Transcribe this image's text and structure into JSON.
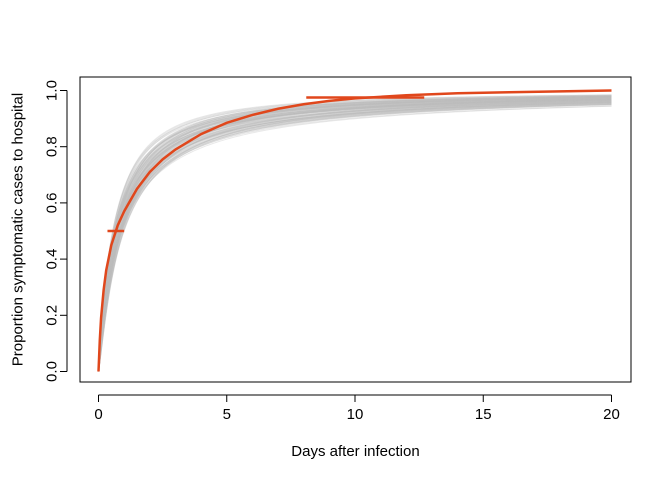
{
  "chart_data": {
    "type": "line",
    "title": "",
    "xlabel": "Days after infection",
    "ylabel": "Proportion symptomatic cases to hospital",
    "xlim": [
      0,
      20
    ],
    "ylim": [
      0,
      1
    ],
    "x_ticks": [
      0,
      5,
      10,
      15,
      20
    ],
    "y_ticks": [
      0.0,
      0.2,
      0.4,
      0.6,
      0.8,
      1.0
    ],
    "x_tick_labels": [
      "0",
      "5",
      "10",
      "15",
      "20"
    ],
    "y_tick_labels": [
      "0.0",
      "0.2",
      "0.4",
      "0.6",
      "0.8",
      "1.0"
    ],
    "grid": false,
    "legend": "none",
    "series": [
      {
        "role": "central-estimate",
        "color": "#e0471c",
        "x": [
          0,
          0.05,
          0.1,
          0.2,
          0.3,
          0.5,
          0.75,
          1,
          1.5,
          2,
          2.5,
          3,
          4,
          5,
          6,
          7,
          8,
          9,
          10,
          12,
          14,
          16,
          18,
          20
        ],
        "y": [
          0.0,
          0.11,
          0.19,
          0.29,
          0.36,
          0.45,
          0.52,
          0.57,
          0.65,
          0.71,
          0.755,
          0.79,
          0.845,
          0.885,
          0.913,
          0.935,
          0.951,
          0.963,
          0.972,
          0.983,
          0.99,
          0.994,
          0.997,
          1.0
        ]
      },
      {
        "role": "uncertainty-draws",
        "color": "#bdbdbd",
        "draw_count": 100,
        "median_days_range": [
          0.55,
          1.0
        ],
        "shape_range": [
          0.9,
          1.2
        ]
      }
    ],
    "annotations": [
      {
        "type": "interval",
        "y": 0.5,
        "x_range": [
          0.35,
          1.0
        ],
        "color": "#e0471c"
      },
      {
        "type": "interval",
        "y": 0.975,
        "x_range": [
          8.1,
          12.7
        ],
        "color": "#e0471c"
      }
    ]
  }
}
